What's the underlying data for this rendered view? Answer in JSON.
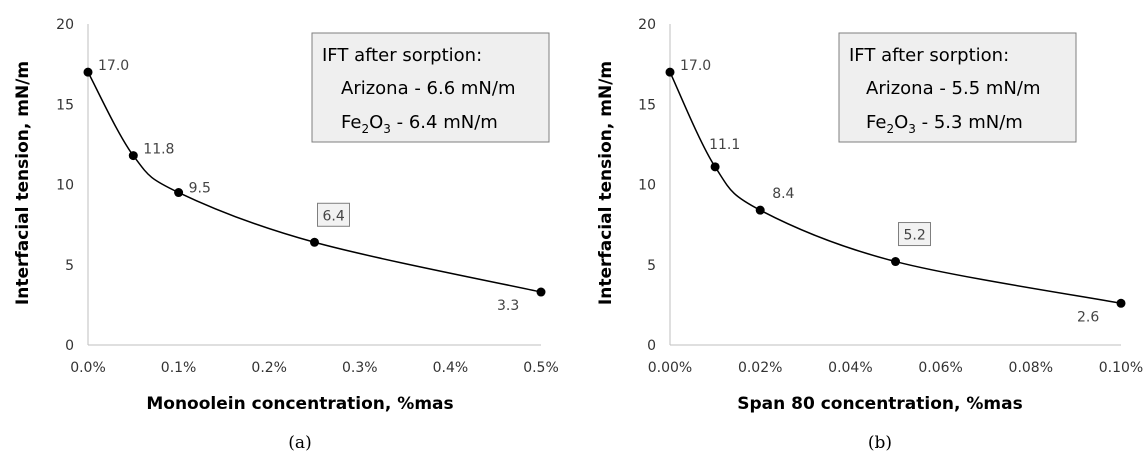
{
  "chart_data": [
    {
      "type": "line",
      "panel_label": "(a)",
      "x": [
        0.0,
        0.05,
        0.1,
        0.25,
        0.5
      ],
      "values": [
        17.0,
        11.8,
        9.5,
        6.4,
        3.3
      ],
      "data_labels": [
        "17.0",
        "11.8",
        "9.5",
        "6.4",
        "3.3"
      ],
      "boxed_label_index": 3,
      "xlabel": "Monoolein concentration, %mas",
      "ylabel": "Interfacial tension, mN/m",
      "xlim": [
        0,
        0.5
      ],
      "ylim": [
        0,
        20
      ],
      "xticks": [
        0,
        0.1,
        0.2,
        0.3,
        0.4,
        0.5
      ],
      "xtick_labels": [
        "0.0%",
        "0.1%",
        "0.2%",
        "0.3%",
        "0.4%",
        "0.5%"
      ],
      "yticks": [
        0,
        5,
        10,
        15,
        20
      ],
      "ytick_labels": [
        "0",
        "5",
        "10",
        "15",
        "20"
      ],
      "grid": false,
      "marker": "circle",
      "smooth": true,
      "annotation": {
        "title": "IFT after sorption:",
        "line1": "Arizona - 6.6 mN/m",
        "line2_prefix": "Fe",
        "line2_sub1": "2",
        "line2_mid": "O",
        "line2_sub2": "3",
        "line2_suffix": " - 6.4 mN/m"
      }
    },
    {
      "type": "line",
      "panel_label": "(b)",
      "x": [
        0.0,
        0.01,
        0.02,
        0.05,
        0.1
      ],
      "values": [
        17.0,
        11.1,
        8.4,
        5.2,
        2.6
      ],
      "data_labels": [
        "17.0",
        "11.1",
        "8.4",
        "5.2",
        "2.6"
      ],
      "boxed_label_index": 3,
      "xlabel": "Span 80 concentration, %mas",
      "ylabel": "Interfacial tension, mN/m",
      "xlim": [
        0,
        0.1
      ],
      "ylim": [
        0,
        20
      ],
      "xticks": [
        0,
        0.02,
        0.04,
        0.06,
        0.08,
        0.1
      ],
      "xtick_labels": [
        "0.00%",
        "0.02%",
        "0.04%",
        "0.06%",
        "0.08%",
        "0.10%"
      ],
      "yticks": [
        0,
        5,
        10,
        15,
        20
      ],
      "ytick_labels": [
        "0",
        "5",
        "10",
        "15",
        "20"
      ],
      "grid": false,
      "marker": "circle",
      "smooth": true,
      "annotation": {
        "title": "IFT after sorption:",
        "line1": "Arizona - 5.5 mN/m",
        "line2_prefix": "Fe",
        "line2_sub1": "2",
        "line2_mid": "O",
        "line2_sub2": "3",
        "line2_suffix": " - 5.3 mN/m"
      }
    }
  ]
}
